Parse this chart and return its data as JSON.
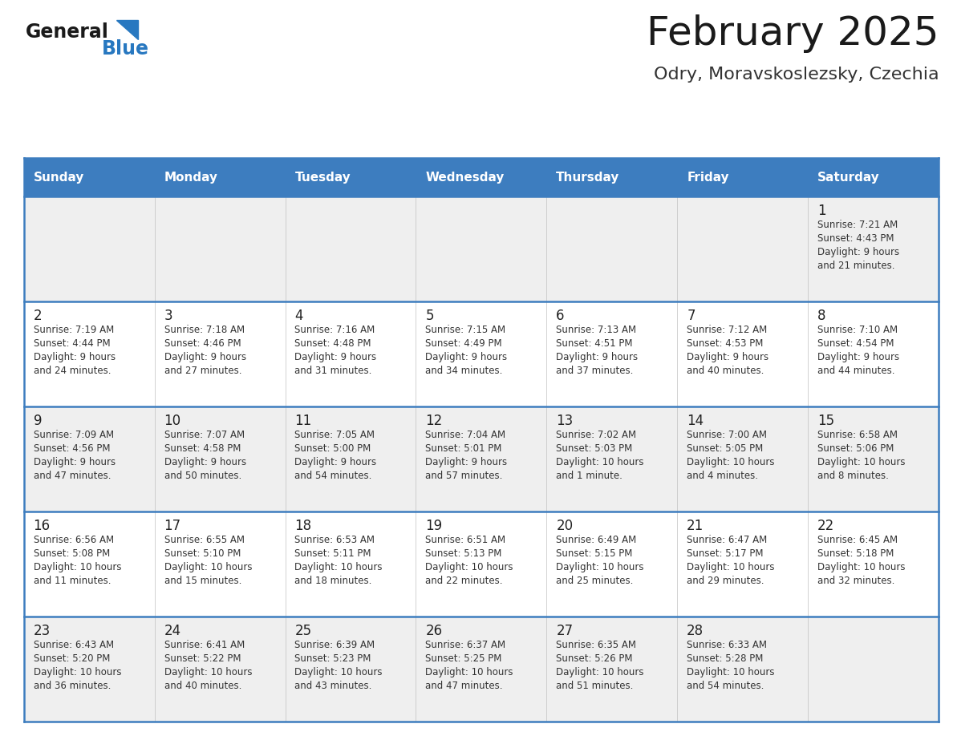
{
  "title": "February 2025",
  "subtitle": "Odry, Moravskoslezsky, Czechia",
  "days_of_week": [
    "Sunday",
    "Monday",
    "Tuesday",
    "Wednesday",
    "Thursday",
    "Friday",
    "Saturday"
  ],
  "header_bg": "#3d7dbf",
  "header_text": "#ffffff",
  "row_bg_even": "#efefef",
  "row_bg_odd": "#ffffff",
  "border_color": "#3d7dbf",
  "day_number_color": "#222222",
  "cell_text_color": "#333333",
  "title_color": "#1a1a1a",
  "subtitle_color": "#333333",
  "general_color": "#1a1a1a",
  "blue_color": "#2878c0",
  "triangle_color": "#2878c0",
  "calendar_data": [
    {
      "day": 1,
      "col": 6,
      "row": 0,
      "sunrise": "7:21 AM",
      "sunset": "4:43 PM",
      "daylight": "9 hours and 21 minutes."
    },
    {
      "day": 2,
      "col": 0,
      "row": 1,
      "sunrise": "7:19 AM",
      "sunset": "4:44 PM",
      "daylight": "9 hours and 24 minutes."
    },
    {
      "day": 3,
      "col": 1,
      "row": 1,
      "sunrise": "7:18 AM",
      "sunset": "4:46 PM",
      "daylight": "9 hours and 27 minutes."
    },
    {
      "day": 4,
      "col": 2,
      "row": 1,
      "sunrise": "7:16 AM",
      "sunset": "4:48 PM",
      "daylight": "9 hours and 31 minutes."
    },
    {
      "day": 5,
      "col": 3,
      "row": 1,
      "sunrise": "7:15 AM",
      "sunset": "4:49 PM",
      "daylight": "9 hours and 34 minutes."
    },
    {
      "day": 6,
      "col": 4,
      "row": 1,
      "sunrise": "7:13 AM",
      "sunset": "4:51 PM",
      "daylight": "9 hours and 37 minutes."
    },
    {
      "day": 7,
      "col": 5,
      "row": 1,
      "sunrise": "7:12 AM",
      "sunset": "4:53 PM",
      "daylight": "9 hours and 40 minutes."
    },
    {
      "day": 8,
      "col": 6,
      "row": 1,
      "sunrise": "7:10 AM",
      "sunset": "4:54 PM",
      "daylight": "9 hours and 44 minutes."
    },
    {
      "day": 9,
      "col": 0,
      "row": 2,
      "sunrise": "7:09 AM",
      "sunset": "4:56 PM",
      "daylight": "9 hours and 47 minutes."
    },
    {
      "day": 10,
      "col": 1,
      "row": 2,
      "sunrise": "7:07 AM",
      "sunset": "4:58 PM",
      "daylight": "9 hours and 50 minutes."
    },
    {
      "day": 11,
      "col": 2,
      "row": 2,
      "sunrise": "7:05 AM",
      "sunset": "5:00 PM",
      "daylight": "9 hours and 54 minutes."
    },
    {
      "day": 12,
      "col": 3,
      "row": 2,
      "sunrise": "7:04 AM",
      "sunset": "5:01 PM",
      "daylight": "9 hours and 57 minutes."
    },
    {
      "day": 13,
      "col": 4,
      "row": 2,
      "sunrise": "7:02 AM",
      "sunset": "5:03 PM",
      "daylight": "10 hours and 1 minute."
    },
    {
      "day": 14,
      "col": 5,
      "row": 2,
      "sunrise": "7:00 AM",
      "sunset": "5:05 PM",
      "daylight": "10 hours and 4 minutes."
    },
    {
      "day": 15,
      "col": 6,
      "row": 2,
      "sunrise": "6:58 AM",
      "sunset": "5:06 PM",
      "daylight": "10 hours and 8 minutes."
    },
    {
      "day": 16,
      "col": 0,
      "row": 3,
      "sunrise": "6:56 AM",
      "sunset": "5:08 PM",
      "daylight": "10 hours and 11 minutes."
    },
    {
      "day": 17,
      "col": 1,
      "row": 3,
      "sunrise": "6:55 AM",
      "sunset": "5:10 PM",
      "daylight": "10 hours and 15 minutes."
    },
    {
      "day": 18,
      "col": 2,
      "row": 3,
      "sunrise": "6:53 AM",
      "sunset": "5:11 PM",
      "daylight": "10 hours and 18 minutes."
    },
    {
      "day": 19,
      "col": 3,
      "row": 3,
      "sunrise": "6:51 AM",
      "sunset": "5:13 PM",
      "daylight": "10 hours and 22 minutes."
    },
    {
      "day": 20,
      "col": 4,
      "row": 3,
      "sunrise": "6:49 AM",
      "sunset": "5:15 PM",
      "daylight": "10 hours and 25 minutes."
    },
    {
      "day": 21,
      "col": 5,
      "row": 3,
      "sunrise": "6:47 AM",
      "sunset": "5:17 PM",
      "daylight": "10 hours and 29 minutes."
    },
    {
      "day": 22,
      "col": 6,
      "row": 3,
      "sunrise": "6:45 AM",
      "sunset": "5:18 PM",
      "daylight": "10 hours and 32 minutes."
    },
    {
      "day": 23,
      "col": 0,
      "row": 4,
      "sunrise": "6:43 AM",
      "sunset": "5:20 PM",
      "daylight": "10 hours and 36 minutes."
    },
    {
      "day": 24,
      "col": 1,
      "row": 4,
      "sunrise": "6:41 AM",
      "sunset": "5:22 PM",
      "daylight": "10 hours and 40 minutes."
    },
    {
      "day": 25,
      "col": 2,
      "row": 4,
      "sunrise": "6:39 AM",
      "sunset": "5:23 PM",
      "daylight": "10 hours and 43 minutes."
    },
    {
      "day": 26,
      "col": 3,
      "row": 4,
      "sunrise": "6:37 AM",
      "sunset": "5:25 PM",
      "daylight": "10 hours and 47 minutes."
    },
    {
      "day": 27,
      "col": 4,
      "row": 4,
      "sunrise": "6:35 AM",
      "sunset": "5:26 PM",
      "daylight": "10 hours and 51 minutes."
    },
    {
      "day": 28,
      "col": 5,
      "row": 4,
      "sunrise": "6:33 AM",
      "sunset": "5:28 PM",
      "daylight": "10 hours and 54 minutes."
    }
  ],
  "num_rows": 5,
  "num_cols": 7,
  "figsize": [
    11.88,
    9.18
  ],
  "dpi": 100
}
